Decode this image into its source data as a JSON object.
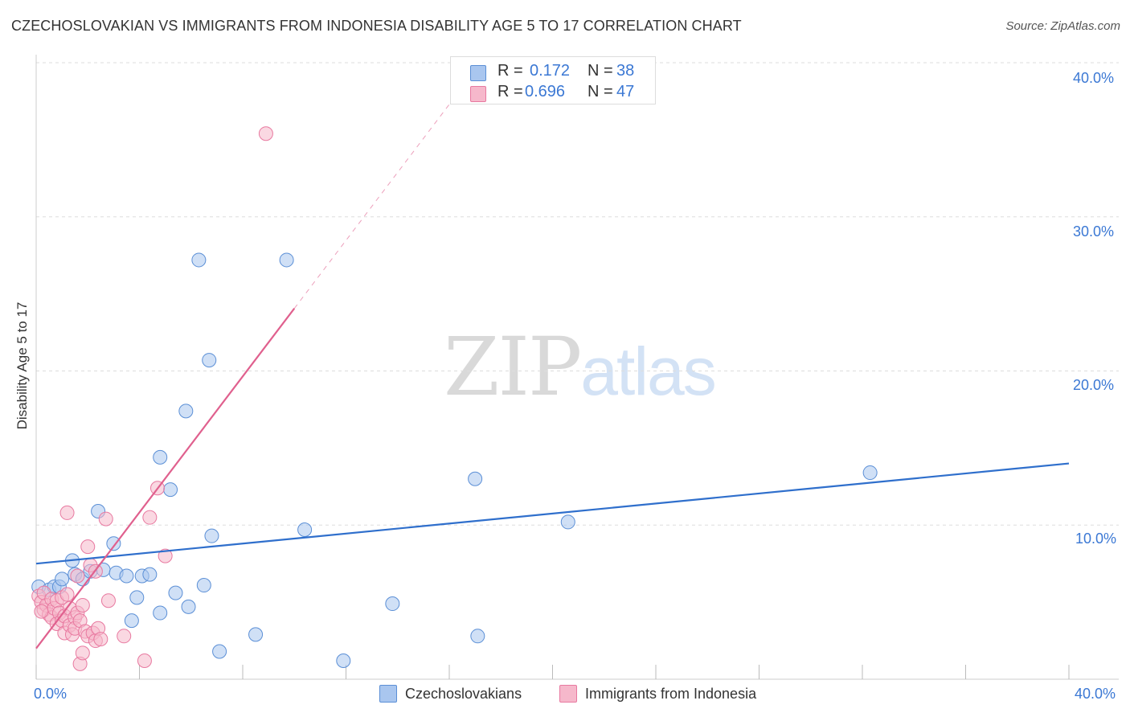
{
  "title": "CZECHOSLOVAKIAN VS IMMIGRANTS FROM INDONESIA DISABILITY AGE 5 TO 17 CORRELATION CHART",
  "source": "Source: ZipAtlas.com",
  "watermark": {
    "zip": "ZIP",
    "atlas": "atlas"
  },
  "legend": {
    "r_label": "R =",
    "n_label": "N =",
    "rows": [
      {
        "r": "0.172",
        "n": "38",
        "color": "#a9c6ef"
      },
      {
        "r": "0.696",
        "n": "47",
        "color": "#f6b8cb"
      }
    ]
  },
  "colors": {
    "blue_fill": "#a9c6ef",
    "blue_stroke": "#5b8fd6",
    "blue_line": "#2f6fcc",
    "pink_fill": "#f6b8cb",
    "pink_stroke": "#e879a0",
    "pink_line": "#e0608e",
    "tick_text": "#3b78d4",
    "grid": "#dddddd"
  },
  "chart_data": {
    "type": "scatter",
    "title": "CZECHOSLOVAKIAN VS IMMIGRANTS FROM INDONESIA DISABILITY AGE 5 TO 17 CORRELATION CHART",
    "xlabel": "",
    "ylabel": "Disability Age 5 to 17",
    "xlim": [
      0,
      40
    ],
    "ylim": [
      0,
      40
    ],
    "x_tick_labels": [
      "0.0%",
      "40.0%"
    ],
    "y_ticks": [
      10,
      20,
      30,
      40
    ],
    "y_tick_labels": [
      "10.0%",
      "20.0%",
      "30.0%",
      "40.0%"
    ],
    "grid": true,
    "legend_position": "bottom",
    "series": [
      {
        "name": "Czechoslovakians",
        "r": 0.172,
        "n": 38,
        "trend": {
          "x": [
            0,
            40
          ],
          "y": [
            7.5,
            14.0
          ],
          "solid_until": 40
        },
        "points": [
          [
            0.1,
            6.0
          ],
          [
            0.5,
            5.8
          ],
          [
            0.7,
            6.0
          ],
          [
            0.9,
            6.0
          ],
          [
            1.0,
            6.5
          ],
          [
            1.4,
            7.7
          ],
          [
            1.5,
            6.8
          ],
          [
            1.8,
            6.5
          ],
          [
            2.1,
            7.0
          ],
          [
            2.4,
            10.9
          ],
          [
            2.6,
            7.1
          ],
          [
            3.0,
            8.8
          ],
          [
            3.1,
            6.9
          ],
          [
            3.5,
            6.7
          ],
          [
            3.7,
            3.8
          ],
          [
            3.9,
            5.3
          ],
          [
            4.1,
            6.7
          ],
          [
            4.4,
            6.8
          ],
          [
            4.8,
            14.4
          ],
          [
            4.8,
            4.3
          ],
          [
            5.2,
            12.3
          ],
          [
            5.4,
            5.6
          ],
          [
            5.9,
            4.7
          ],
          [
            5.8,
            17.4
          ],
          [
            6.3,
            27.2
          ],
          [
            6.5,
            6.1
          ],
          [
            6.7,
            20.7
          ],
          [
            6.8,
            9.3
          ],
          [
            7.1,
            1.8
          ],
          [
            8.5,
            2.9
          ],
          [
            9.7,
            27.2
          ],
          [
            10.4,
            9.7
          ],
          [
            11.9,
            1.2
          ],
          [
            13.8,
            4.9
          ],
          [
            17.0,
            13.0
          ],
          [
            17.1,
            2.8
          ],
          [
            20.6,
            10.2
          ],
          [
            32.3,
            13.4
          ]
        ]
      },
      {
        "name": "Immigrants from Indonesia",
        "r": 0.696,
        "n": 47,
        "trend": {
          "x": [
            0,
            17.0
          ],
          "y": [
            2.0,
            39.5
          ],
          "solid_until": 10.0
        },
        "points": [
          [
            0.1,
            5.4
          ],
          [
            0.2,
            5.0
          ],
          [
            0.3,
            4.5
          ],
          [
            0.3,
            5.6
          ],
          [
            0.4,
            4.8
          ],
          [
            0.5,
            4.2
          ],
          [
            0.6,
            5.2
          ],
          [
            0.6,
            4.0
          ],
          [
            0.7,
            4.6
          ],
          [
            0.8,
            5.1
          ],
          [
            0.8,
            3.6
          ],
          [
            0.9,
            4.3
          ],
          [
            1.0,
            5.3
          ],
          [
            1.0,
            3.8
          ],
          [
            1.1,
            4.1
          ],
          [
            1.1,
            3.0
          ],
          [
            1.2,
            5.5
          ],
          [
            1.2,
            10.8
          ],
          [
            1.3,
            3.5
          ],
          [
            1.3,
            4.6
          ],
          [
            1.4,
            2.9
          ],
          [
            1.5,
            4.0
          ],
          [
            1.5,
            3.3
          ],
          [
            1.6,
            4.3
          ],
          [
            1.6,
            6.7
          ],
          [
            1.7,
            3.8
          ],
          [
            1.7,
            1.0
          ],
          [
            1.8,
            4.8
          ],
          [
            1.8,
            1.7
          ],
          [
            1.9,
            3.1
          ],
          [
            2.0,
            2.8
          ],
          [
            2.0,
            8.6
          ],
          [
            2.1,
            7.4
          ],
          [
            2.2,
            3.0
          ],
          [
            2.3,
            7.0
          ],
          [
            2.3,
            2.5
          ],
          [
            2.4,
            3.3
          ],
          [
            2.5,
            2.6
          ],
          [
            2.7,
            10.4
          ],
          [
            2.8,
            5.1
          ],
          [
            3.4,
            2.8
          ],
          [
            4.2,
            1.2
          ],
          [
            4.4,
            10.5
          ],
          [
            4.7,
            12.4
          ],
          [
            5.0,
            8.0
          ],
          [
            8.9,
            35.4
          ],
          [
            0.2,
            4.4
          ]
        ]
      }
    ]
  }
}
